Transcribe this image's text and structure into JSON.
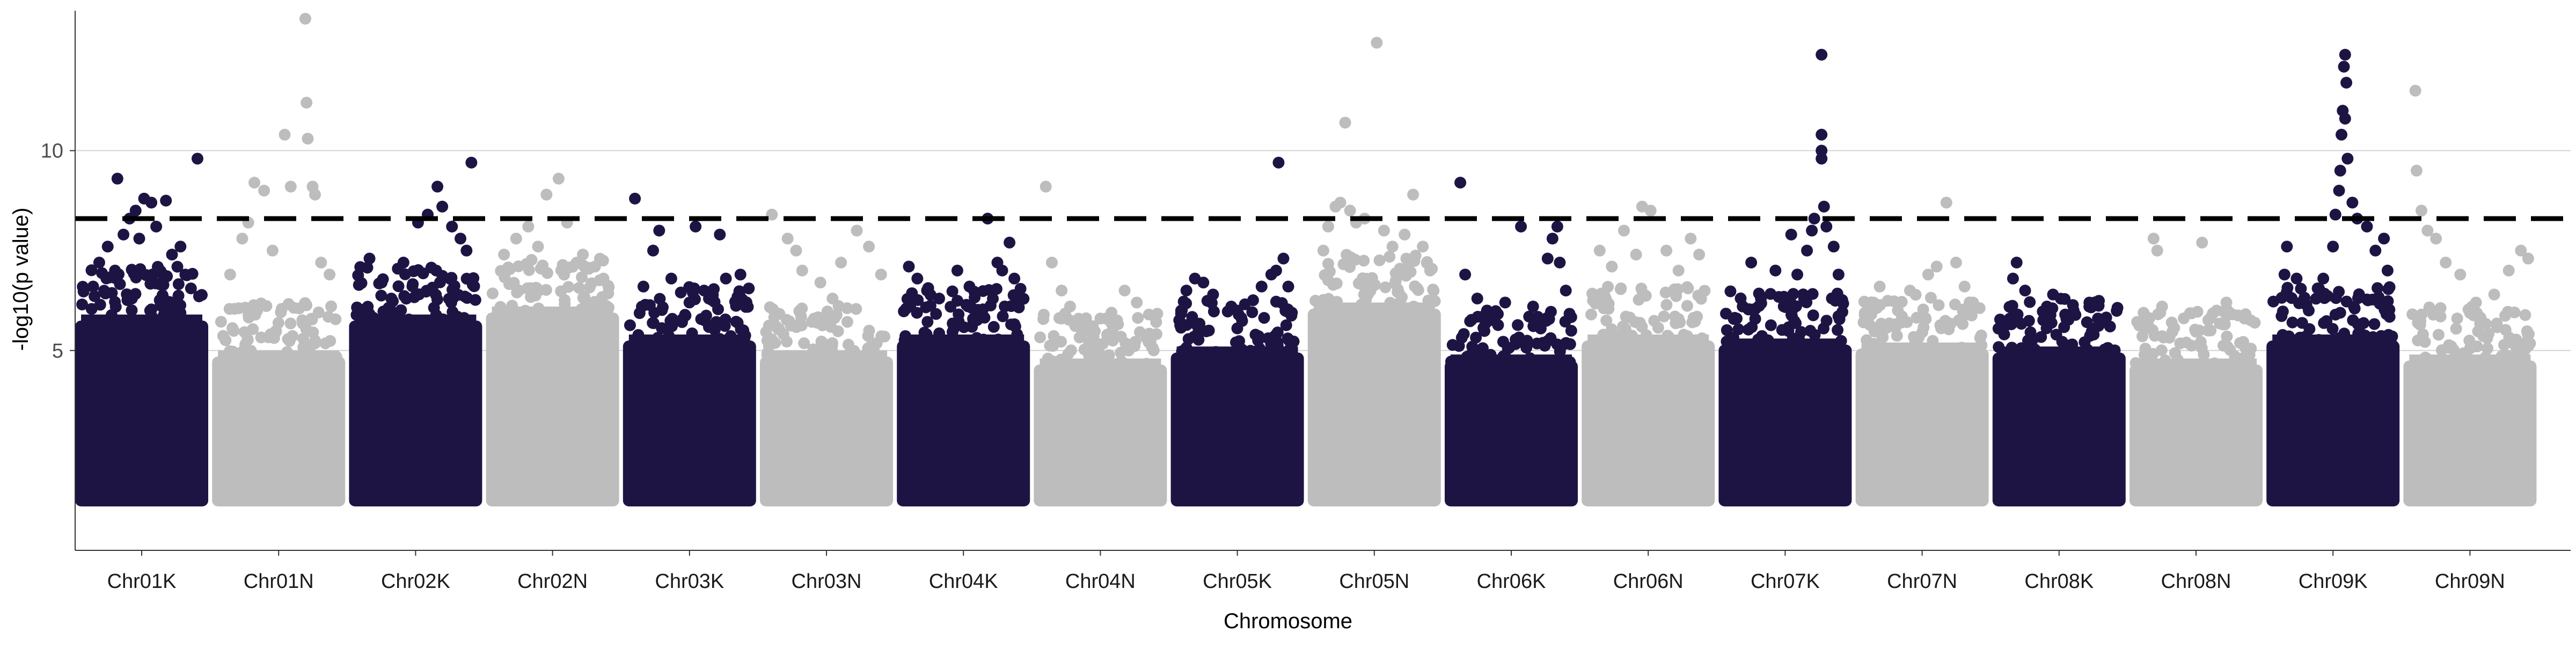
{
  "chart_data": {
    "type": "scatter",
    "subtype": "manhattan",
    "title": "",
    "xlabel": "Chromosome",
    "ylabel": "-log10(p value)",
    "ylim": [
      0,
      13.5
    ],
    "yticks": [
      5,
      10
    ],
    "grid": "horizontal major lines only",
    "legend": "none",
    "threshold": {
      "value": 8.3,
      "style": "dashed",
      "color": "#000000"
    },
    "colors": {
      "odd": "#1e1444",
      "even": "#bdbdbd"
    },
    "base_min_y": 1.1,
    "chromosomes": [
      {
        "name": "Chr01K",
        "color": "#1e1444",
        "band_top": 5.9,
        "points": [
          [
            0.1,
            6.6
          ],
          [
            0.22,
            7.6
          ],
          [
            0.28,
            7.0
          ],
          [
            0.35,
            7.9
          ],
          [
            0.4,
            8.3
          ],
          [
            0.45,
            8.5
          ],
          [
            0.52,
            8.8
          ],
          [
            0.58,
            8.7
          ],
          [
            0.62,
            8.1
          ],
          [
            0.7,
            8.75
          ],
          [
            0.75,
            7.4
          ],
          [
            0.82,
            7.6
          ],
          [
            0.86,
            6.9
          ],
          [
            0.3,
            9.3
          ],
          [
            0.96,
            9.8
          ],
          [
            0.15,
            7.2
          ],
          [
            0.48,
            7.8
          ]
        ]
      },
      {
        "name": "Chr01N",
        "color": "#bdbdbd",
        "band_top": 5.0,
        "points": [
          [
            0.1,
            6.9
          ],
          [
            0.2,
            7.8
          ],
          [
            0.25,
            8.2
          ],
          [
            0.3,
            9.2
          ],
          [
            0.38,
            9.0
          ],
          [
            0.55,
            10.4
          ],
          [
            0.6,
            9.1
          ],
          [
            0.72,
            13.3
          ],
          [
            0.73,
            11.2
          ],
          [
            0.74,
            10.3
          ],
          [
            0.78,
            9.1
          ],
          [
            0.8,
            8.9
          ],
          [
            0.85,
            7.2
          ],
          [
            0.92,
            6.9
          ],
          [
            0.45,
            7.5
          ]
        ]
      },
      {
        "name": "Chr02K",
        "color": "#1e1444",
        "band_top": 5.9,
        "points": [
          [
            0.12,
            7.3
          ],
          [
            0.22,
            6.7
          ],
          [
            0.4,
            7.2
          ],
          [
            0.52,
            8.2
          ],
          [
            0.6,
            8.4
          ],
          [
            0.68,
            9.1
          ],
          [
            0.72,
            8.6
          ],
          [
            0.8,
            8.1
          ],
          [
            0.87,
            7.8
          ],
          [
            0.92,
            7.5
          ],
          [
            0.96,
            9.7
          ],
          [
            0.3,
            6.3
          ]
        ]
      },
      {
        "name": "Chr02N",
        "color": "#bdbdbd",
        "band_top": 6.1,
        "points": [
          [
            0.1,
            7.4
          ],
          [
            0.2,
            7.8
          ],
          [
            0.3,
            8.1
          ],
          [
            0.38,
            7.6
          ],
          [
            0.45,
            8.9
          ],
          [
            0.55,
            9.3
          ],
          [
            0.62,
            8.2
          ],
          [
            0.75,
            7.4
          ],
          [
            0.85,
            7.1
          ],
          [
            0.92,
            6.8
          ]
        ]
      },
      {
        "name": "Chr03K",
        "color": "#1e1444",
        "band_top": 5.4,
        "points": [
          [
            0.05,
            8.8
          ],
          [
            0.12,
            6.6
          ],
          [
            0.2,
            7.5
          ],
          [
            0.25,
            8.0
          ],
          [
            0.35,
            6.8
          ],
          [
            0.55,
            8.1
          ],
          [
            0.62,
            6.5
          ],
          [
            0.75,
            7.9
          ],
          [
            0.8,
            6.8
          ],
          [
            0.92,
            6.9
          ]
        ]
      },
      {
        "name": "Chr03N",
        "color": "#bdbdbd",
        "band_top": 5.0,
        "points": [
          [
            0.05,
            8.4
          ],
          [
            0.18,
            7.8
          ],
          [
            0.25,
            7.5
          ],
          [
            0.3,
            7.0
          ],
          [
            0.45,
            6.7
          ],
          [
            0.55,
            6.3
          ],
          [
            0.62,
            7.2
          ],
          [
            0.75,
            8.0
          ],
          [
            0.85,
            7.6
          ],
          [
            0.95,
            6.9
          ]
        ]
      },
      {
        "name": "Chr04K",
        "color": "#1e1444",
        "band_top": 5.4,
        "points": [
          [
            0.05,
            7.1
          ],
          [
            0.12,
            6.8
          ],
          [
            0.2,
            6.5
          ],
          [
            0.3,
            6.3
          ],
          [
            0.45,
            7.0
          ],
          [
            0.55,
            6.6
          ],
          [
            0.7,
            8.3
          ],
          [
            0.78,
            7.2
          ],
          [
            0.82,
            7.0
          ],
          [
            0.88,
            7.7
          ],
          [
            0.92,
            6.8
          ]
        ]
      },
      {
        "name": "Chr04N",
        "color": "#bdbdbd",
        "band_top": 4.8,
        "points": [
          [
            0.05,
            9.1
          ],
          [
            0.1,
            7.2
          ],
          [
            0.18,
            6.5
          ],
          [
            0.25,
            6.1
          ],
          [
            0.35,
            5.5
          ],
          [
            0.5,
            5.8
          ],
          [
            0.6,
            5.5
          ],
          [
            0.7,
            6.5
          ],
          [
            0.8,
            6.2
          ],
          [
            0.9,
            5.9
          ]
        ]
      },
      {
        "name": "Chr05K",
        "color": "#1e1444",
        "band_top": 5.1,
        "points": [
          [
            0.08,
            6.5
          ],
          [
            0.15,
            6.8
          ],
          [
            0.22,
            6.7
          ],
          [
            0.3,
            6.4
          ],
          [
            0.45,
            6.1
          ],
          [
            0.5,
            6.0
          ],
          [
            0.7,
            6.6
          ],
          [
            0.78,
            6.9
          ],
          [
            0.82,
            7.0
          ],
          [
            0.88,
            7.3
          ],
          [
            0.84,
            9.7
          ],
          [
            0.92,
            6.6
          ]
        ]
      },
      {
        "name": "Chr05N",
        "color": "#bdbdbd",
        "band_top": 6.2,
        "points": [
          [
            0.08,
            7.5
          ],
          [
            0.12,
            8.1
          ],
          [
            0.18,
            8.6
          ],
          [
            0.22,
            8.7
          ],
          [
            0.26,
            10.7
          ],
          [
            0.3,
            8.5
          ],
          [
            0.35,
            8.2
          ],
          [
            0.42,
            8.3
          ],
          [
            0.52,
            12.7
          ],
          [
            0.58,
            8.0
          ],
          [
            0.65,
            7.6
          ],
          [
            0.75,
            7.9
          ],
          [
            0.82,
            8.9
          ],
          [
            0.9,
            7.6
          ],
          [
            0.96,
            7.0
          ]
        ]
      },
      {
        "name": "Chr06K",
        "color": "#1e1444",
        "band_top": 4.9,
        "points": [
          [
            0.08,
            9.2
          ],
          [
            0.12,
            6.9
          ],
          [
            0.22,
            6.3
          ],
          [
            0.3,
            6.0
          ],
          [
            0.45,
            6.2
          ],
          [
            0.58,
            8.1
          ],
          [
            0.68,
            6.1
          ],
          [
            0.8,
            7.3
          ],
          [
            0.84,
            7.8
          ],
          [
            0.88,
            8.1
          ],
          [
            0.9,
            7.2
          ],
          [
            0.95,
            6.5
          ]
        ]
      },
      {
        "name": "Chr06N",
        "color": "#bdbdbd",
        "band_top": 5.4,
        "points": [
          [
            0.1,
            7.5
          ],
          [
            0.2,
            7.1
          ],
          [
            0.3,
            8.0
          ],
          [
            0.4,
            7.4
          ],
          [
            0.45,
            8.6
          ],
          [
            0.52,
            8.5
          ],
          [
            0.65,
            7.5
          ],
          [
            0.75,
            7.0
          ],
          [
            0.85,
            7.8
          ],
          [
            0.92,
            7.4
          ]
        ]
      },
      {
        "name": "Chr07K",
        "color": "#1e1444",
        "band_top": 5.3,
        "points": [
          [
            0.1,
            5.8
          ],
          [
            0.15,
            6.1
          ],
          [
            0.22,
            7.2
          ],
          [
            0.3,
            6.3
          ],
          [
            0.42,
            7.0
          ],
          [
            0.55,
            7.9
          ],
          [
            0.6,
            6.9
          ],
          [
            0.68,
            7.5
          ],
          [
            0.72,
            8.0
          ],
          [
            0.74,
            8.3
          ],
          [
            0.8,
            9.8
          ],
          [
            0.8,
            10.0
          ],
          [
            0.8,
            10.4
          ],
          [
            0.8,
            12.4
          ],
          [
            0.82,
            8.6
          ],
          [
            0.84,
            8.1
          ],
          [
            0.9,
            7.6
          ],
          [
            0.94,
            6.9
          ]
        ]
      },
      {
        "name": "Chr07N",
        "color": "#bdbdbd",
        "band_top": 5.2,
        "points": [
          [
            0.1,
            6.2
          ],
          [
            0.15,
            6.6
          ],
          [
            0.3,
            6.0
          ],
          [
            0.4,
            6.5
          ],
          [
            0.55,
            6.9
          ],
          [
            0.62,
            7.1
          ],
          [
            0.7,
            8.7
          ],
          [
            0.78,
            7.2
          ],
          [
            0.85,
            6.6
          ],
          [
            0.92,
            6.2
          ]
        ]
      },
      {
        "name": "Chr08K",
        "color": "#1e1444",
        "band_top": 5.1,
        "points": [
          [
            0.12,
            6.8
          ],
          [
            0.15,
            7.2
          ],
          [
            0.22,
            6.5
          ],
          [
            0.4,
            6.1
          ],
          [
            0.45,
            6.4
          ],
          [
            0.55,
            5.9
          ],
          [
            0.62,
            6.0
          ],
          [
            0.75,
            6.2
          ],
          [
            0.82,
            5.8
          ],
          [
            0.92,
            5.6
          ]
        ]
      },
      {
        "name": "Chr08N",
        "color": "#bdbdbd",
        "band_top": 4.8,
        "points": [
          [
            0.15,
            7.8
          ],
          [
            0.18,
            7.5
          ],
          [
            0.22,
            6.1
          ],
          [
            0.3,
            5.7
          ],
          [
            0.42,
            5.2
          ],
          [
            0.55,
            7.7
          ],
          [
            0.62,
            5.5
          ],
          [
            0.75,
            6.2
          ],
          [
            0.9,
            5.8
          ]
        ]
      },
      {
        "name": "Chr09K",
        "color": "#1e1444",
        "band_top": 5.4,
        "points": [
          [
            0.1,
            6.9
          ],
          [
            0.12,
            7.6
          ],
          [
            0.2,
            6.8
          ],
          [
            0.3,
            6.0
          ],
          [
            0.42,
            6.8
          ],
          [
            0.5,
            7.6
          ],
          [
            0.52,
            8.4
          ],
          [
            0.55,
            9.0
          ],
          [
            0.56,
            9.5
          ],
          [
            0.57,
            10.4
          ],
          [
            0.58,
            11.0
          ],
          [
            0.59,
            12.1
          ],
          [
            0.6,
            12.4
          ],
          [
            0.61,
            11.7
          ],
          [
            0.6,
            10.8
          ],
          [
            0.62,
            9.8
          ],
          [
            0.66,
            8.7
          ],
          [
            0.7,
            8.3
          ],
          [
            0.78,
            8.1
          ],
          [
            0.85,
            7.5
          ],
          [
            0.92,
            7.8
          ],
          [
            0.95,
            7.0
          ]
        ]
      },
      {
        "name": "Chr09N",
        "color": "#bdbdbd",
        "band_top": 4.9,
        "points": [
          [
            0.05,
            11.5
          ],
          [
            0.06,
            9.5
          ],
          [
            0.1,
            8.5
          ],
          [
            0.15,
            8.0
          ],
          [
            0.22,
            7.8
          ],
          [
            0.3,
            7.2
          ],
          [
            0.42,
            6.9
          ],
          [
            0.55,
            6.2
          ],
          [
            0.7,
            6.4
          ],
          [
            0.82,
            7.0
          ],
          [
            0.92,
            7.5
          ],
          [
            0.98,
            7.3
          ]
        ]
      }
    ]
  }
}
